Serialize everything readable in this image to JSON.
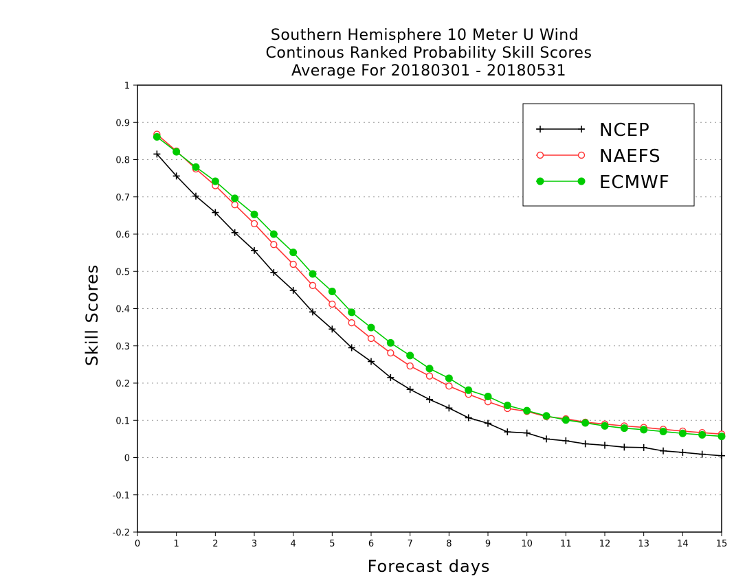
{
  "chart_data": {
    "type": "line",
    "title_lines": [
      "Southern Hemisphere 10 Meter U Wind",
      "Continous Ranked Probability Skill Scores",
      "Average For 20180301 - 20180531"
    ],
    "xlabel": "Forecast days",
    "ylabel": "Skill Scores",
    "xlim": [
      0,
      15
    ],
    "ylim": [
      -0.2,
      1
    ],
    "x_ticks": [
      0,
      1,
      2,
      3,
      4,
      5,
      6,
      7,
      8,
      9,
      10,
      11,
      12,
      13,
      14,
      15
    ],
    "x_tick_labels": [
      "0",
      "1",
      "2",
      "3",
      "4",
      "5",
      "6",
      "7",
      "8",
      "9",
      "10",
      "11",
      "12",
      "13",
      "14",
      "15"
    ],
    "y_ticks": [
      -0.2,
      -0.1,
      0,
      0.1,
      0.2,
      0.3,
      0.4,
      0.5,
      0.6,
      0.7,
      0.8,
      0.9,
      1
    ],
    "y_tick_labels": [
      "-0.2",
      "-0.1",
      "0",
      "0.1",
      "0.2",
      "0.3",
      "0.4",
      "0.5",
      "0.6",
      "0.7",
      "0.8",
      "0.9",
      "1"
    ],
    "grid": "horizontal dotted",
    "legend_position": "top-right",
    "x": [
      0.5,
      1,
      1.5,
      2,
      2.5,
      3,
      3.5,
      4,
      4.5,
      5,
      5.5,
      6,
      6.5,
      7,
      7.5,
      8,
      8.5,
      9,
      9.5,
      10,
      10.5,
      11,
      11.5,
      12,
      12.5,
      13,
      13.5,
      14,
      14.5,
      15
    ],
    "series": [
      {
        "name": "NCEP",
        "color": "#000000",
        "marker": "plus",
        "values": [
          0.815,
          0.756,
          0.702,
          0.658,
          0.604,
          0.556,
          0.497,
          0.449,
          0.391,
          0.345,
          0.295,
          0.258,
          0.215,
          0.183,
          0.156,
          0.133,
          0.107,
          0.092,
          0.069,
          0.066,
          0.05,
          0.045,
          0.037,
          0.033,
          0.028,
          0.027,
          0.018,
          0.014,
          0.009,
          0.005
        ]
      },
      {
        "name": "NAEFS",
        "color": "#ff3333",
        "marker": "open-circle",
        "values": [
          0.868,
          0.823,
          0.775,
          0.73,
          0.679,
          0.628,
          0.572,
          0.519,
          0.462,
          0.412,
          0.362,
          0.32,
          0.281,
          0.246,
          0.219,
          0.192,
          0.17,
          0.15,
          0.132,
          0.124,
          0.11,
          0.104,
          0.095,
          0.09,
          0.085,
          0.081,
          0.076,
          0.071,
          0.067,
          0.063
        ]
      },
      {
        "name": "ECMWF",
        "color": "#00cc00",
        "marker": "filled-circle",
        "values": [
          0.861,
          0.821,
          0.78,
          0.742,
          0.696,
          0.653,
          0.6,
          0.551,
          0.493,
          0.446,
          0.39,
          0.349,
          0.308,
          0.274,
          0.239,
          0.213,
          0.181,
          0.164,
          0.14,
          0.126,
          0.112,
          0.101,
          0.093,
          0.085,
          0.079,
          0.075,
          0.07,
          0.065,
          0.061,
          0.057
        ]
      }
    ]
  }
}
